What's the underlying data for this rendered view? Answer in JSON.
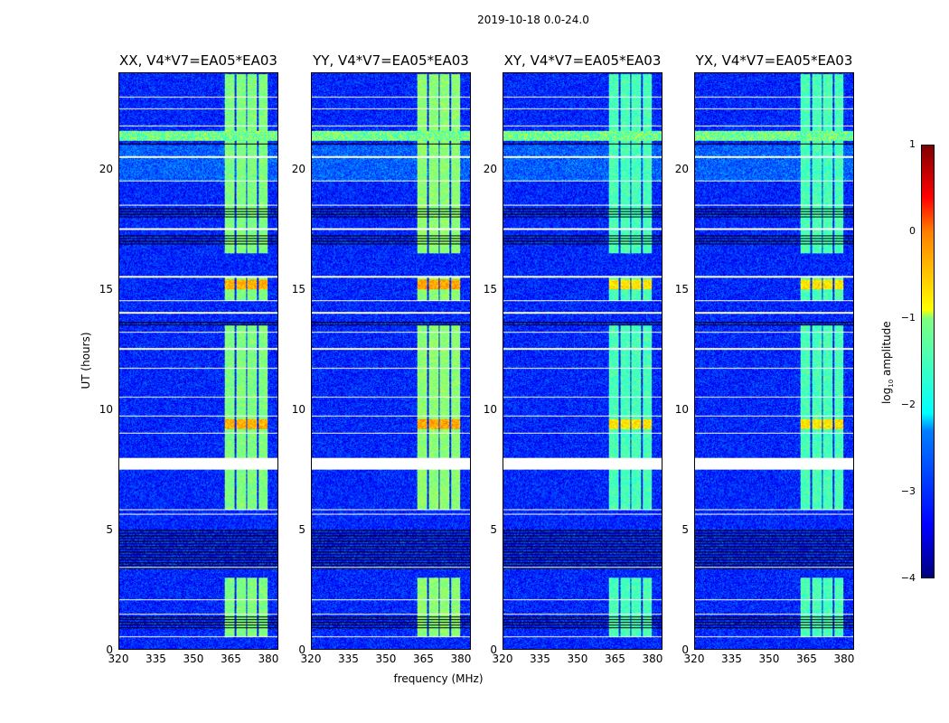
{
  "figure": {
    "suptitle": "2019-10-18 0.0-24.0"
  },
  "chart_data": {
    "type": "heatmap",
    "title": "2019-10-18 0.0-24.0",
    "xlabel": "frequency (MHz)",
    "ylabel": "UT (hours)",
    "xlim": [
      320,
      384
    ],
    "ylim": [
      0,
      24
    ],
    "xticks": [
      "320",
      "335",
      "350",
      "365",
      "380"
    ],
    "xtick_values": [
      320,
      335,
      350,
      365,
      380
    ],
    "yticks": [
      "0",
      "5",
      "10",
      "15",
      "20"
    ],
    "ytick_values": [
      0,
      5,
      10,
      15,
      20
    ],
    "panels": [
      {
        "title": "XX, V4*V7=EA05*EA03",
        "band_strength": 1.0
      },
      {
        "title": "YY, V4*V7=EA05*EA03",
        "band_strength": 1.05
      },
      {
        "title": "XY, V4*V7=EA05*EA03",
        "band_strength": 0.85
      },
      {
        "title": "YX, V4*V7=EA05*EA03",
        "band_strength": 0.85
      }
    ],
    "background_log10_amplitude": -3.2,
    "rfi_band_mhz": [
      362,
      380
    ],
    "rfi_band_log10_amplitude": -1.5,
    "rfi_band_active_hours": [
      [
        0.5,
        3.0
      ],
      [
        5.8,
        13.5
      ],
      [
        14.5,
        15.5
      ],
      [
        16.5,
        24
      ]
    ],
    "rfi_strong_hours": [
      [
        9.2,
        9.6
      ],
      [
        15.0,
        15.4
      ]
    ],
    "broadband_rfi_hours": [
      21.2,
      21.6
    ],
    "flagged_hours": [
      [
        7.5,
        8.0
      ],
      [
        0.5,
        0.55
      ],
      [
        1.45,
        1.5
      ],
      [
        2.05,
        2.1
      ],
      [
        3.4,
        3.45
      ],
      [
        5.6,
        5.65
      ],
      [
        5.8,
        5.85
      ],
      [
        9.0,
        9.05
      ],
      [
        9.7,
        9.75
      ],
      [
        10.5,
        10.55
      ],
      [
        11.7,
        11.75
      ],
      [
        12.5,
        12.55
      ],
      [
        13.2,
        13.25
      ],
      [
        14.0,
        14.05
      ],
      [
        14.5,
        14.55
      ],
      [
        15.5,
        15.55
      ],
      [
        17.5,
        17.55
      ],
      [
        18.5,
        18.55
      ],
      [
        19.5,
        19.55
      ],
      [
        20.5,
        20.55
      ],
      [
        21.8,
        21.85
      ],
      [
        22.5,
        22.55
      ],
      [
        23.0,
        23.05
      ]
    ],
    "zero_rows_hours": [
      [
        3.3,
        5.0
      ],
      [
        0.8,
        1.4
      ],
      [
        16.8,
        17.3
      ],
      [
        13.5,
        13.7
      ],
      [
        18.0,
        18.4
      ],
      [
        21.0,
        21.1
      ],
      [
        22.9,
        22.95
      ]
    ],
    "colorbar": {
      "label": "log10 amplitude",
      "label_main": "log",
      "label_sub": "10",
      "label_rest": " amplitude",
      "range": [
        -4,
        1
      ],
      "ticks": [
        "1",
        "0",
        "−1",
        "−2",
        "−3",
        "−4"
      ],
      "tick_values": [
        1,
        0,
        -1,
        -2,
        -3,
        -4
      ]
    }
  }
}
